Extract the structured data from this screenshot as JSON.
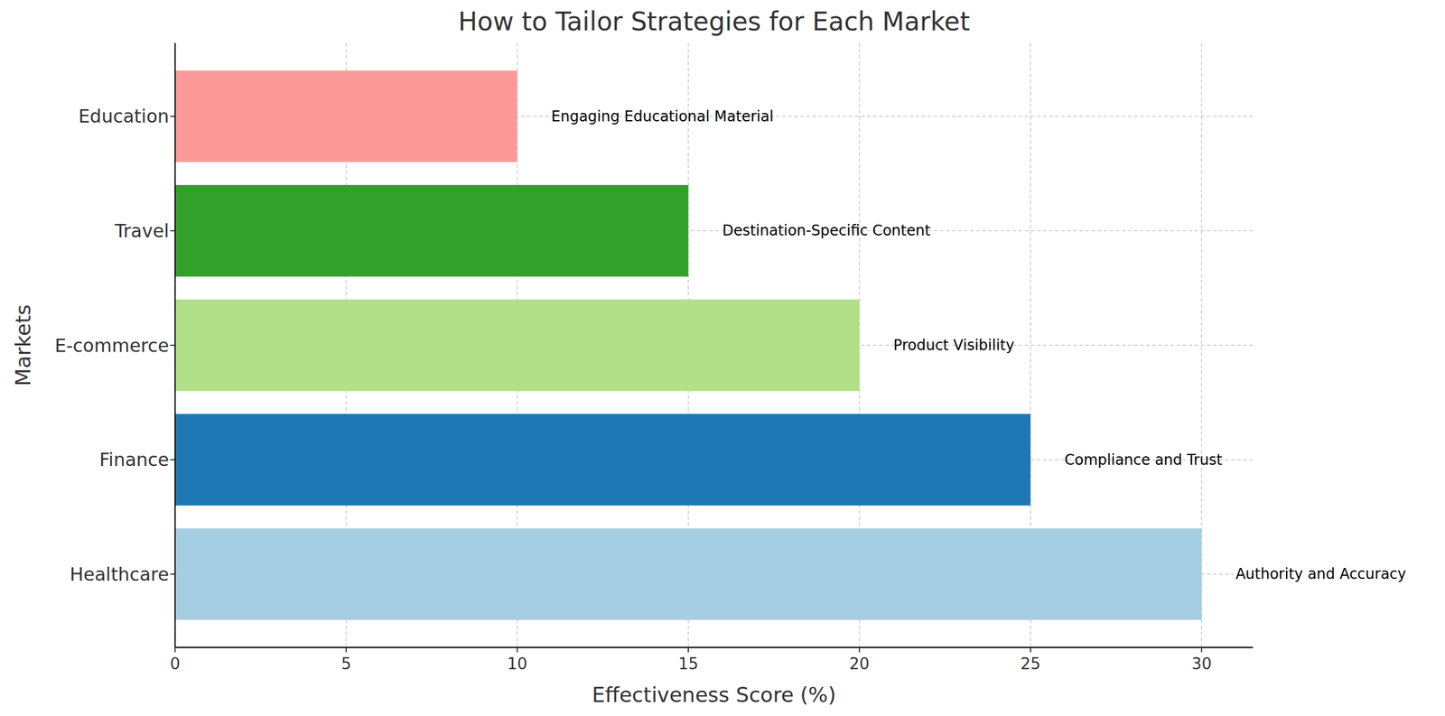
{
  "chart_data": {
    "type": "bar",
    "orientation": "horizontal",
    "title": "How to Tailor Strategies for Each Market",
    "x_label": "Effectiveness Score (%)",
    "y_label": "Markets",
    "categories": [
      "Healthcare",
      "Finance",
      "E-commerce",
      "Travel",
      "Education"
    ],
    "values": [
      30,
      25,
      20,
      15,
      10
    ],
    "colors": [
      "#a6cee3",
      "#1f78b4",
      "#b2df8a",
      "#33a02c",
      "#fb9a99"
    ],
    "annotations": [
      "Authority and Accuracy",
      "Compliance and Trust",
      "Product Visibility",
      "Destination-Specific Content",
      "Engaging Educational Material"
    ],
    "xlim": [
      0,
      31.5
    ],
    "xticks": [
      0,
      5,
      10,
      15,
      20,
      25,
      30
    ],
    "grid": true
  }
}
